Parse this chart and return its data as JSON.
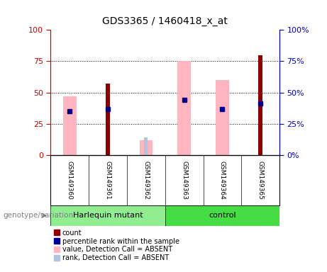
{
  "title": "GDS3365 / 1460418_x_at",
  "samples": [
    "GSM149360",
    "GSM149361",
    "GSM149362",
    "GSM149363",
    "GSM149364",
    "GSM149365"
  ],
  "count_values": [
    0,
    57,
    0,
    0,
    0,
    80
  ],
  "count_color": "#8B0000",
  "rank_values": [
    35,
    37,
    0,
    44,
    37,
    41
  ],
  "rank_color": "#00008B",
  "absent_value_values": [
    47,
    0,
    12,
    75,
    60,
    0
  ],
  "absent_value_color": "#FFB6C1",
  "absent_rank_values": [
    0,
    0,
    14,
    0,
    0,
    0
  ],
  "absent_rank_color": "#B0C4DE",
  "ylim": [
    0,
    100
  ],
  "yticks": [
    0,
    25,
    50,
    75,
    100
  ],
  "tick_color_left": "#CC0000",
  "tick_color_right": "#0000BB",
  "group_label": "genotype/variation",
  "group1_label": "Harlequin mutant",
  "group1_color": "#90EE90",
  "group2_label": "control",
  "group2_color": "#44DD44",
  "legend_items": [
    {
      "label": "count",
      "color": "#8B0000"
    },
    {
      "label": "percentile rank within the sample",
      "color": "#00008B"
    },
    {
      "label": "value, Detection Call = ABSENT",
      "color": "#FFB6C1"
    },
    {
      "label": "rank, Detection Call = ABSENT",
      "color": "#B0C4DE"
    }
  ],
  "background_color": "#ffffff",
  "sample_box_color": "#C8C8C8",
  "grid_color": "#000000",
  "wide_bar_width": 0.35,
  "narrow_bar_width": 0.12
}
